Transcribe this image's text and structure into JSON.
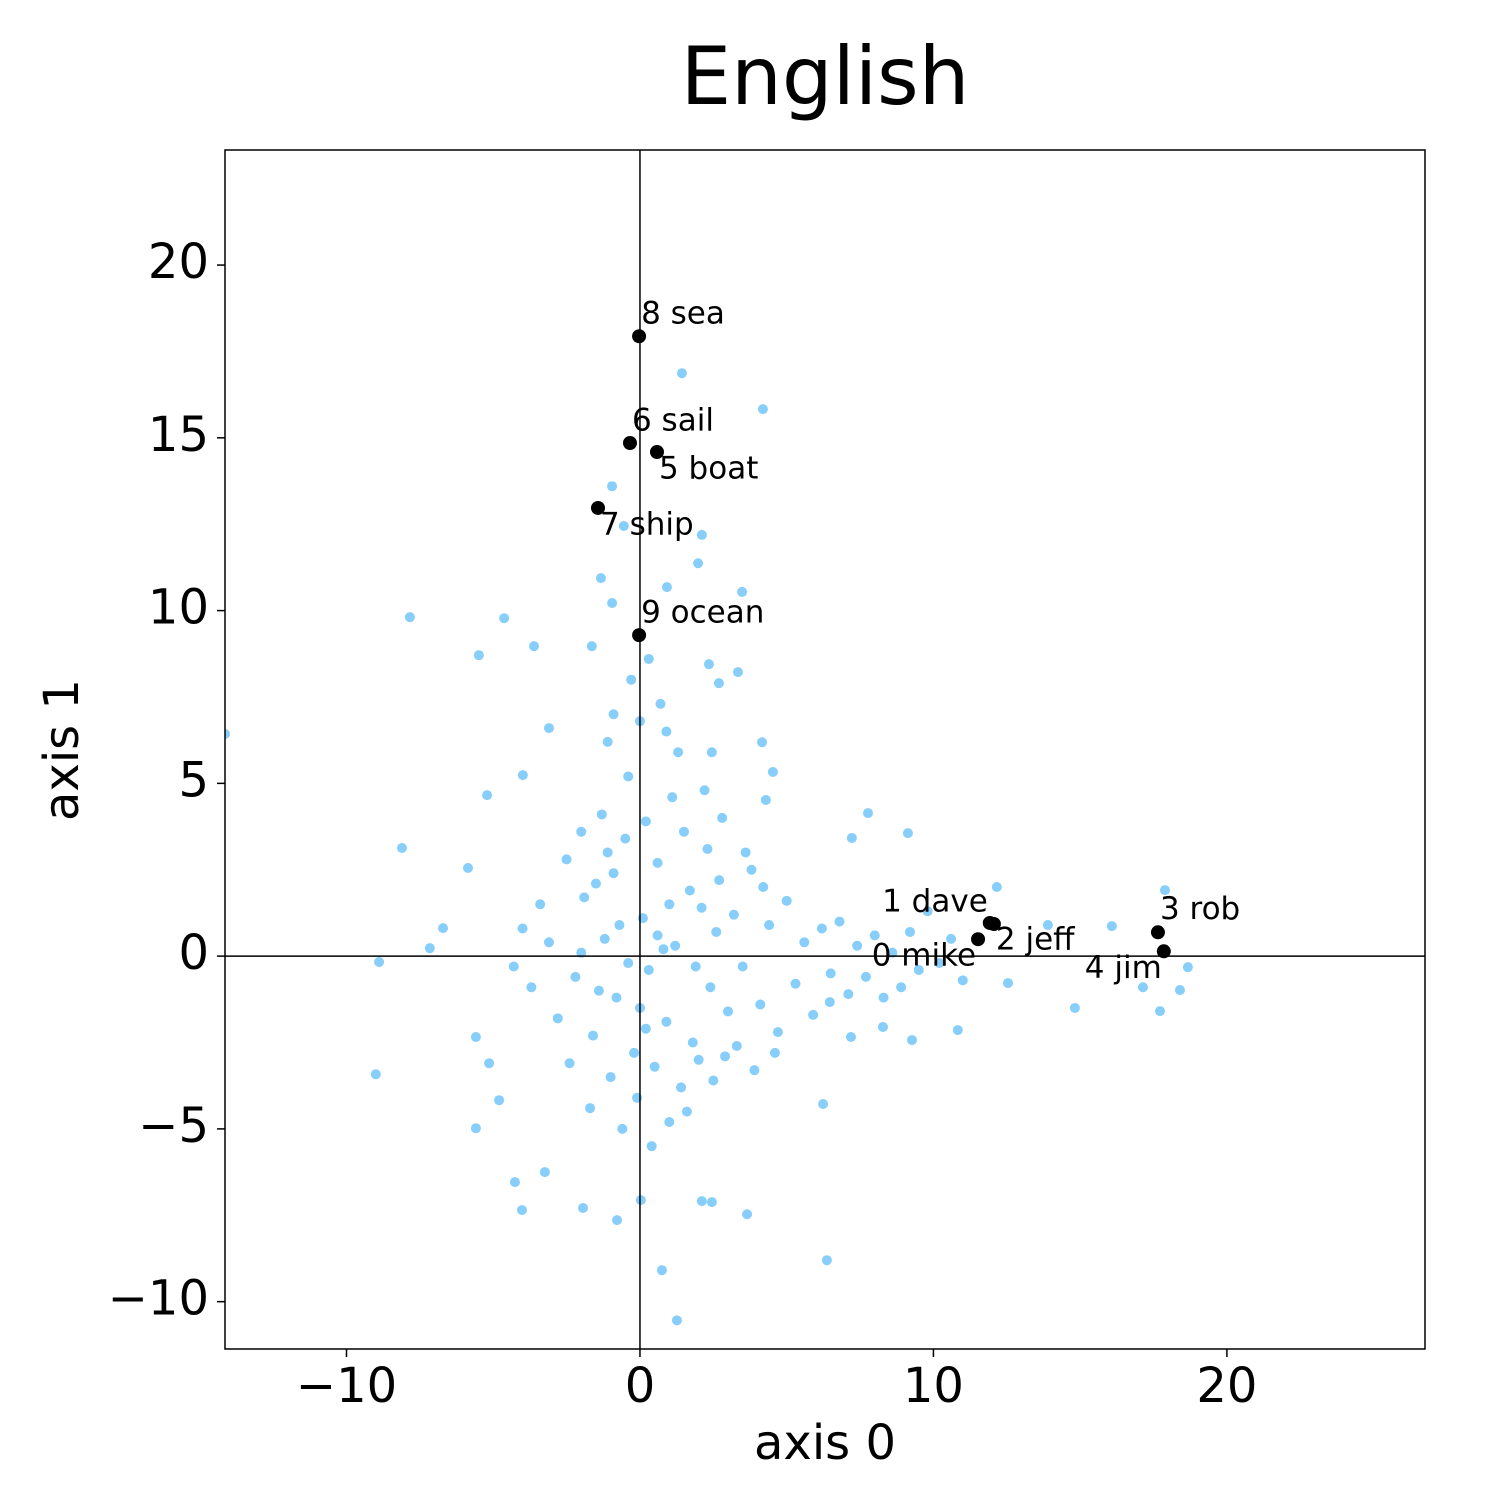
{
  "chart_data": {
    "type": "scatter",
    "title": "English",
    "xlabel": "axis 0",
    "ylabel": "axis 1",
    "xlim": [
      -14.14,
      26.75
    ],
    "ylim": [
      -11.37,
      23.33
    ],
    "xticks": [
      {
        "value": -10,
        "label": "−10"
      },
      0,
      10,
      20
    ],
    "yticks": [
      {
        "value": -10,
        "label": "−10"
      },
      {
        "value": -5,
        "label": "−5"
      },
      0,
      5,
      10,
      15,
      20
    ],
    "axhline": 0,
    "axvline": 0,
    "background": {
      "color": "#87cefa",
      "x": [
        1.43,
        4.19,
        -7.84,
        -14.14,
        -5.49,
        -4.63,
        -3.61,
        -8.11,
        -8.89,
        -9.0,
        -4.02,
        -4.26,
        -3.24,
        6.37,
        0.75,
        1.26,
        0.03,
        -0.78,
        -1.94,
        3.65,
        2.11,
        2.45,
        6.24,
        -7.16,
        -6.71,
        -5.14,
        -5.59,
        -4.8,
        18.67,
        18.4,
        17.72,
        17.89,
        14.82,
        10.83,
        12.16,
        9.13,
        7.77,
        7.22,
        13.9,
        16.08,
        17.14,
        12.54,
        2.45,
        4.16,
        4.53,
        4.29,
        3.48,
        3.34,
        2.69,
        2.35,
        1.98,
        2.11,
        0.92,
        -0.55,
        -0.95,
        -1.33,
        -0.95,
        -1.64,
        -5.86,
        -5.21,
        -3.99,
        -3.1,
        -5.59,
        8.28,
        7.19,
        9.27,
        6.47,
        -1.5,
        -1.2,
        -0.8,
        -0.5,
        -0.2,
        0.1,
        0.3,
        0.6,
        0.9,
        1.2,
        1.5,
        1.8,
        2.1,
        2.4,
        2.7,
        3.0,
        -2.2,
        -1.9,
        -1.6,
        -1.3,
        -1.0,
        -0.7,
        -0.4,
        -0.1,
        0.2,
        0.5,
        0.8,
        1.1,
        1.4,
        1.7,
        2.0,
        2.3,
        2.6,
        2.9,
        3.2,
        3.5,
        3.8,
        4.1,
        4.4,
        4.7,
        5.0,
        5.3,
        5.6,
        5.9,
        6.2,
        6.5,
        6.8,
        7.1,
        7.4,
        7.7,
        8.0,
        8.3,
        8.6,
        8.9,
        9.2,
        9.5,
        9.8,
        10.2,
        10.6,
        11.0,
        -2.5,
        -2.8,
        -3.1,
        -3.4,
        -3.7,
        -4.0,
        -4.3,
        -2.4,
        -2.0,
        -1.7,
        -1.1,
        -0.6,
        0.0,
        0.4,
        0.7,
        1.0,
        1.3,
        1.6,
        2.2,
        2.5,
        2.8,
        3.3,
        3.6,
        3.9,
        4.2,
        4.6,
        -0.3,
        0.3,
        -0.9,
        0.9,
        -1.4,
        -0.9,
        0.0,
        0.6,
        1.9,
        -2.0,
        -0.4,
        1.0,
        0.2,
        -1.1
      ],
      "y": [
        16.87,
        15.83,
        9.81,
        6.43,
        8.71,
        9.78,
        8.97,
        3.13,
        -0.17,
        -3.42,
        -7.35,
        -6.54,
        -6.25,
        -8.8,
        -9.09,
        -10.54,
        -7.06,
        -7.64,
        -7.29,
        -7.47,
        -7.09,
        -7.12,
        -4.28,
        0.23,
        0.81,
        -3.1,
        -2.34,
        -4.17,
        -0.32,
        -0.98,
        -1.59,
        1.91,
        -1.5,
        -2.14,
        2.0,
        3.56,
        4.14,
        3.42,
        0.9,
        0.87,
        -0.9,
        -0.78,
        5.9,
        6.19,
        5.33,
        4.52,
        10.54,
        8.22,
        7.9,
        8.45,
        11.37,
        12.19,
        10.68,
        12.45,
        13.6,
        10.94,
        10.22,
        8.97,
        2.55,
        4.66,
        5.24,
        6.6,
        -4.98,
        -2.05,
        -2.34,
        -2.43,
        -1.33,
        2.1,
        0.5,
        -1.2,
        3.4,
        -2.8,
        1.1,
        -0.4,
        2.7,
        -1.9,
        0.3,
        3.6,
        -2.5,
        1.4,
        -0.9,
        2.2,
        -1.6,
        -0.6,
        1.7,
        -2.3,
        4.1,
        -3.5,
        0.9,
        5.2,
        -4.1,
        3.9,
        -3.2,
        0.2,
        4.6,
        -3.8,
        1.9,
        -3.0,
        3.1,
        0.7,
        -2.9,
        1.2,
        -0.3,
        2.5,
        -1.4,
        0.9,
        -2.2,
        1.6,
        -0.8,
        0.4,
        -1.7,
        0.8,
        -0.5,
        1.0,
        -1.1,
        0.3,
        -0.6,
        0.6,
        -1.2,
        0.1,
        -0.9,
        0.7,
        -0.4,
        1.3,
        -0.2,
        0.5,
        -0.7,
        2.8,
        -1.8,
        0.4,
        1.5,
        -0.9,
        0.8,
        -0.3,
        -3.1,
        3.6,
        -4.4,
        6.2,
        -5.0,
        6.8,
        -5.5,
        7.3,
        -4.8,
        5.9,
        -4.5,
        4.8,
        -3.6,
        4.0,
        -2.6,
        3.0,
        -3.3,
        2.0,
        -2.8,
        8.0,
        8.6,
        7.0,
        6.5,
        -1.0,
        2.4,
        -1.5,
        0.6,
        -0.3,
        0.1,
        -0.2,
        1.5,
        -2.1,
        3.0
      ]
    },
    "highlighted": {
      "color": "#000000",
      "x": [
        11.52,
        11.92,
        12.06,
        17.65,
        17.85,
        0.58,
        -0.34,
        -1.43,
        -0.03,
        -0.03
      ],
      "y": [
        0.49,
        0.96,
        0.93,
        0.69,
        0.14,
        14.59,
        14.85,
        12.97,
        17.94,
        9.29
      ],
      "labels": [
        "0 mike",
        "1 dave",
        "2 jeff",
        "3 rob",
        "4 jim",
        "5 boat",
        "6 sail",
        "7 ship",
        "8 sea",
        "9 ocean"
      ]
    }
  }
}
